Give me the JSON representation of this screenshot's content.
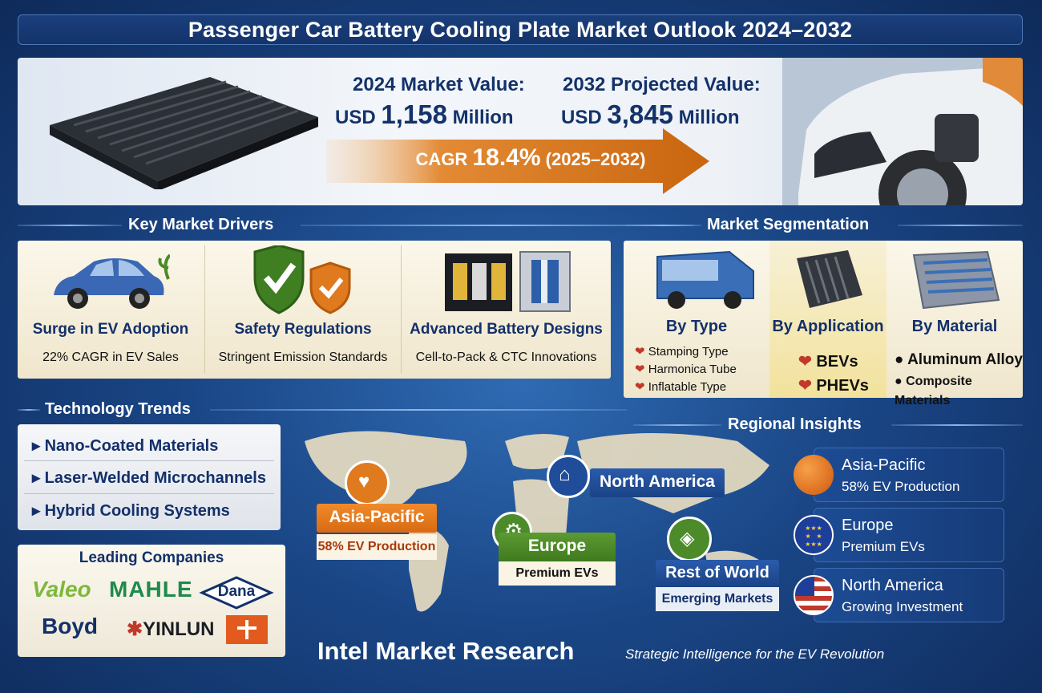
{
  "title": "Passenger Car Battery Cooling Plate Market Outlook 2024–2032",
  "hero": {
    "value_2024_label": "2024 Market Value:",
    "value_2024_prefix": "USD",
    "value_2024_number": "1,158",
    "value_2024_unit": "Million",
    "value_2032_label": "2032 Projected Value:",
    "value_2032_prefix": "USD",
    "value_2032_number": "3,845",
    "value_2032_unit": "Million",
    "cagr_label": "CAGR",
    "cagr_value": "18.4%",
    "cagr_period": "(2025–2032)"
  },
  "drivers": {
    "heading": "Key Market Drivers",
    "items": [
      {
        "icon": "car-icon",
        "title": "Surge in EV Adoption",
        "sub": "22% CAGR in EV Sales"
      },
      {
        "icon": "shield-check-icon",
        "title": "Safety Regulations",
        "sub": "Stringent Emission Standards"
      },
      {
        "icon": "battery-pack-icon",
        "title": "Advanced Battery Designs",
        "sub": "Cell-to-Pack & CTC Innovations"
      }
    ]
  },
  "segmentation": {
    "heading": "Market Segmentation",
    "by_type": {
      "title": "By Type",
      "items": [
        "Stamping Type",
        "Harmonica Tube",
        "Inflatable Type"
      ]
    },
    "by_application": {
      "title": "By Application",
      "items": [
        "BEVs",
        "PHEVs"
      ]
    },
    "by_material": {
      "title": "By Material",
      "items": [
        "Aluminum Alloy",
        "Composite Materials"
      ]
    }
  },
  "trends": {
    "heading": "Technology Trends",
    "items": [
      "Nano-Coated Materials",
      "Laser-Welded Microchannels",
      "Hybrid Cooling Systems"
    ]
  },
  "companies": {
    "heading": "Leading Companies",
    "logos": [
      "Valeo",
      "MAHLE",
      "Dana",
      "Boyd",
      "YINLUN"
    ]
  },
  "regional": {
    "heading": "Regional Insights",
    "map": {
      "asia_pacific": {
        "name": "Asia-Pacific",
        "note": "58% EV Production"
      },
      "north_america": {
        "name": "North America"
      },
      "europe": {
        "name": "Europe",
        "note": "Premium EVs"
      },
      "rest_of_world": {
        "name": "Rest of World",
        "note": "Emerging Markets"
      }
    },
    "cards": [
      {
        "name": "Asia-Pacific",
        "desc": "58% EV Production",
        "icon": "orange-globe-icon"
      },
      {
        "name": "Europe",
        "desc": "Premium EVs",
        "icon": "eu-flag-icon"
      },
      {
        "name": "North America",
        "desc": "Growing Investment",
        "icon": "us-flag-icon"
      }
    ]
  },
  "footer": {
    "brand": "Intel Market Research",
    "tagline": "Strategic Intelligence for the EV Revolution"
  },
  "colors": {
    "accent_orange": "#e07a1f",
    "navy": "#14326a",
    "green": "#4c8a2a"
  }
}
